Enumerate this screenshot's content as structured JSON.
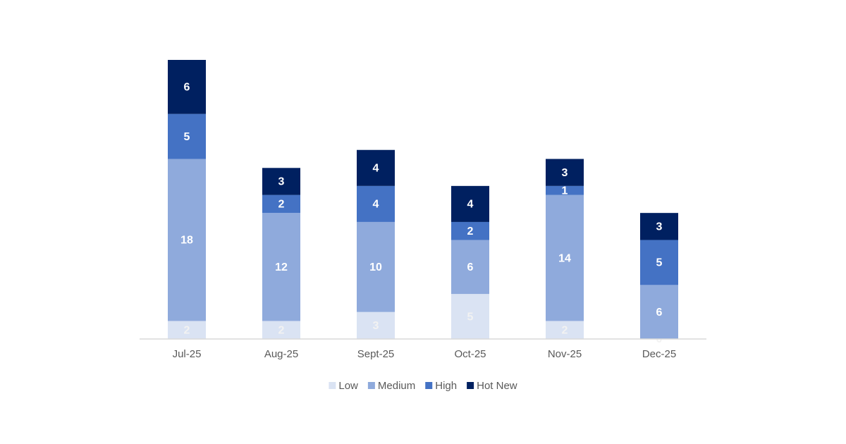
{
  "chart_data": {
    "type": "stacked_bar",
    "categories": [
      "Jul-25",
      "Aug-25",
      "Sept-25",
      "Oct-25",
      "Nov-25",
      "Dec-25"
    ],
    "series": [
      {
        "name": "Low",
        "color": "#dae3f3",
        "values": [
          2,
          2,
          3,
          5,
          2,
          0
        ]
      },
      {
        "name": "Medium",
        "color": "#8faadc",
        "values": [
          18,
          12,
          10,
          6,
          14,
          6
        ]
      },
      {
        "name": "High",
        "color": "#4472c4",
        "values": [
          5,
          2,
          4,
          2,
          1,
          5
        ]
      },
      {
        "name": "Hot New",
        "color": "#002060",
        "values": [
          6,
          3,
          4,
          4,
          3,
          3
        ]
      }
    ],
    "legend": "bottom"
  }
}
